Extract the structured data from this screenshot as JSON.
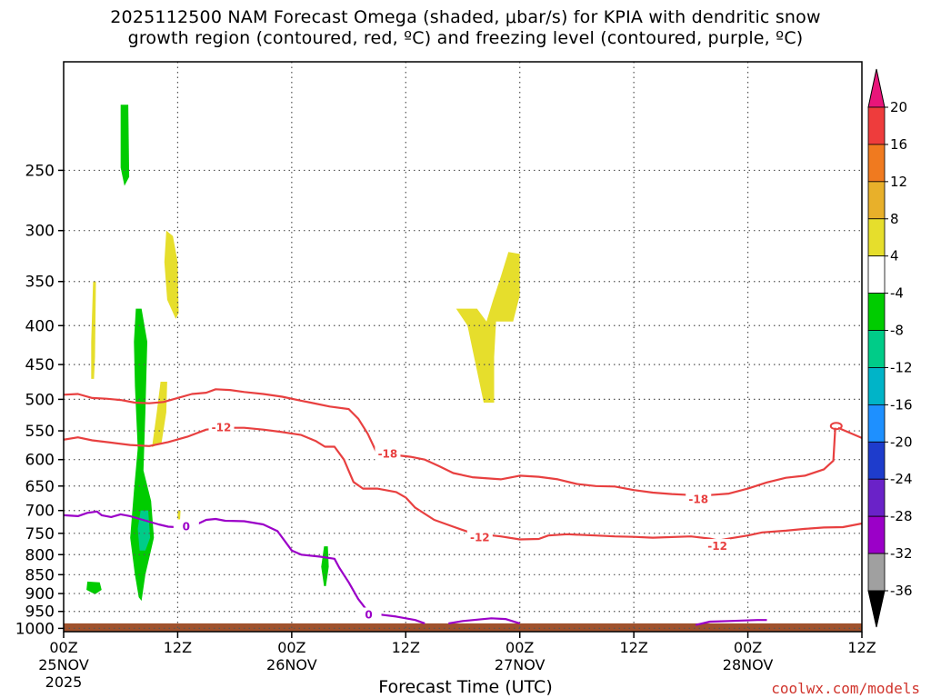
{
  "title_line1": "2025112500 NAM Forecast Omega (shaded, μbar/s) for KPIA with dendritic snow",
  "title_line2": "growth region (contoured, red, ºC) and freezing level (contoured, purple, ºC)",
  "x_axis_title": "Forecast Time (UTC)",
  "credit": "coolwx.com/models",
  "chart_data": {
    "type": "heatmap",
    "y_ticks": [
      250,
      300,
      350,
      400,
      450,
      500,
      550,
      600,
      650,
      700,
      750,
      800,
      850,
      900,
      950,
      1000
    ],
    "ylim": [
      1010,
      180
    ],
    "x_ticks": [
      {
        "h": 0,
        "label": [
          "00Z",
          "25NOV",
          "2025"
        ]
      },
      {
        "h": 12,
        "label": [
          "12Z"
        ]
      },
      {
        "h": 24,
        "label": [
          "00Z",
          "26NOV"
        ]
      },
      {
        "h": 36,
        "label": [
          "12Z"
        ]
      },
      {
        "h": 48,
        "label": [
          "00Z",
          "27NOV"
        ]
      },
      {
        "h": 60,
        "label": [
          "12Z"
        ]
      },
      {
        "h": 72,
        "label": [
          "00Z",
          "28NOV"
        ]
      },
      {
        "h": 84,
        "label": [
          "12Z"
        ]
      }
    ],
    "xlim": [
      0,
      84
    ],
    "grid": true,
    "colorbar": {
      "labels": [
        20,
        16,
        12,
        8,
        4,
        -4,
        -8,
        -12,
        -16,
        -20,
        -24,
        -28,
        -32,
        -36
      ],
      "colors": [
        "#e8157a",
        "#ee3c3c",
        "#f07a1f",
        "#e8b02a",
        "#e6de2c",
        "#ffffff",
        "#00cc00",
        "#00cc88",
        "#00b4c8",
        "#1e90ff",
        "#1e3ccc",
        "#6a22c8",
        "#9b00c8",
        "#a0a0a0",
        "#000000"
      ]
    },
    "contour_labels": [
      {
        "text": "-12",
        "h": 16.6,
        "p": 545,
        "color": "#e84040"
      },
      {
        "text": "-18",
        "h": 34.1,
        "p": 590,
        "color": "#e84040"
      },
      {
        "text": "-12",
        "h": 43.8,
        "p": 760,
        "color": "#e84040"
      },
      {
        "text": "-18",
        "h": 66.8,
        "p": 677,
        "color": "#e84040"
      },
      {
        "text": "-12",
        "h": 68.8,
        "p": 780,
        "color": "#e84040"
      },
      {
        "text": "0",
        "h": 12.9,
        "p": 735,
        "color": "#9b00c8"
      },
      {
        "text": "0",
        "h": 32.1,
        "p": 960,
        "color": "#9b00c8"
      }
    ],
    "series": [
      {
        "kind": "contour",
        "color": "#e84040",
        "points": [
          [
            0,
            493
          ],
          [
            1.5,
            492
          ],
          [
            3,
            498
          ],
          [
            4.5,
            499
          ],
          [
            6,
            501
          ],
          [
            7.5,
            505
          ],
          [
            9,
            506
          ],
          [
            10.5,
            504
          ],
          [
            12,
            498
          ],
          [
            13.5,
            492
          ],
          [
            15,
            490
          ],
          [
            16,
            485
          ],
          [
            17.5,
            486
          ],
          [
            19,
            489
          ],
          [
            21,
            492
          ],
          [
            23,
            496
          ],
          [
            25,
            502
          ],
          [
            26,
            505
          ],
          [
            28,
            511
          ],
          [
            30,
            515
          ],
          [
            31,
            530
          ],
          [
            32,
            555
          ],
          [
            32.5,
            572
          ],
          [
            33,
            590
          ],
          [
            34,
            590
          ],
          [
            36.5,
            595
          ],
          [
            38,
            600
          ],
          [
            39.5,
            612
          ],
          [
            41,
            625
          ],
          [
            43,
            633
          ],
          [
            46,
            637
          ],
          [
            48,
            630
          ],
          [
            50,
            632
          ],
          [
            52,
            637
          ],
          [
            54,
            646
          ],
          [
            56,
            650
          ],
          [
            58,
            651
          ],
          [
            60,
            658
          ],
          [
            62,
            663
          ],
          [
            64,
            666
          ],
          [
            66,
            668
          ],
          [
            68,
            668
          ],
          [
            70,
            665
          ],
          [
            72,
            655
          ],
          [
            74,
            643
          ],
          [
            76,
            634
          ],
          [
            78,
            630
          ],
          [
            80,
            618
          ],
          [
            81,
            602
          ],
          [
            81.2,
            545
          ]
        ]
      },
      {
        "kind": "contour",
        "color": "#e84040",
        "points": [
          [
            0,
            565
          ],
          [
            1.5,
            561
          ],
          [
            3,
            566
          ],
          [
            5,
            570
          ],
          [
            7,
            574
          ],
          [
            9,
            576
          ],
          [
            11,
            569
          ],
          [
            13,
            560
          ],
          [
            15,
            548
          ],
          [
            17,
            545
          ],
          [
            19,
            545
          ],
          [
            21,
            548
          ],
          [
            23,
            552
          ],
          [
            25,
            557
          ],
          [
            26.5,
            567
          ],
          [
            27.5,
            577
          ],
          [
            28.5,
            577
          ],
          [
            29.5,
            600
          ],
          [
            30.5,
            642
          ],
          [
            31.5,
            655
          ],
          [
            33,
            655
          ],
          [
            35,
            662
          ],
          [
            36,
            673
          ],
          [
            37,
            694
          ],
          [
            39,
            720
          ],
          [
            41,
            735
          ],
          [
            43,
            750
          ],
          [
            46,
            757
          ],
          [
            48,
            764
          ],
          [
            50,
            763
          ],
          [
            51,
            755
          ],
          [
            53,
            752
          ],
          [
            56,
            755
          ],
          [
            58,
            757
          ],
          [
            60,
            758
          ],
          [
            62,
            760
          ],
          [
            66,
            757
          ],
          [
            68,
            762
          ],
          [
            69,
            767
          ]
        ]
      },
      {
        "kind": "contour",
        "color": "#e84040",
        "points": [
          [
            67.5,
            772
          ],
          [
            70,
            762
          ],
          [
            72,
            755
          ],
          [
            73.5,
            748
          ],
          [
            76,
            744
          ],
          [
            78,
            740
          ],
          [
            80,
            737
          ],
          [
            82,
            736
          ],
          [
            84,
            728
          ]
        ]
      },
      {
        "kind": "contour",
        "color": "#e84040",
        "points": [
          [
            81.5,
            545
          ],
          [
            84,
            562
          ]
        ]
      },
      {
        "kind": "contour",
        "color": "#9b00c8",
        "points": [
          [
            0,
            710
          ],
          [
            1.5,
            712
          ],
          [
            2.5,
            705
          ],
          [
            3.5,
            702
          ],
          [
            4,
            710
          ],
          [
            5,
            714
          ],
          [
            6,
            708
          ],
          [
            7,
            712
          ],
          [
            8,
            718
          ],
          [
            9,
            724
          ],
          [
            10,
            730
          ],
          [
            11,
            735
          ],
          [
            12.5,
            737
          ],
          [
            14,
            730
          ],
          [
            15,
            720
          ],
          [
            16,
            718
          ],
          [
            17,
            722
          ],
          [
            19,
            723
          ],
          [
            21,
            730
          ],
          [
            22.5,
            745
          ],
          [
            24,
            790
          ],
          [
            25,
            800
          ],
          [
            27,
            805
          ],
          [
            28.5,
            810
          ],
          [
            29,
            832
          ],
          [
            30,
            870
          ],
          [
            31,
            915
          ],
          [
            32,
            950
          ],
          [
            33,
            958
          ],
          [
            35,
            965
          ],
          [
            37,
            975
          ],
          [
            38,
            985
          ]
        ]
      },
      {
        "kind": "contour",
        "color": "#9b00c8",
        "points": [
          [
            40.5,
            985
          ],
          [
            42,
            978
          ],
          [
            45,
            970
          ],
          [
            46.5,
            972
          ],
          [
            48,
            985
          ]
        ]
      },
      {
        "kind": "contour",
        "color": "#9b00c8",
        "points": [
          [
            66.5,
            990
          ],
          [
            68,
            980
          ],
          [
            70,
            978
          ],
          [
            73,
            975
          ],
          [
            74,
            975
          ]
        ]
      }
    ],
    "shaded": [
      {
        "level": -8,
        "color": "#00cc00",
        "points": [
          [
            6.0,
            205
          ],
          [
            6.8,
            205
          ],
          [
            6.9,
            255
          ],
          [
            6.4,
            262
          ],
          [
            6.0,
            248
          ]
        ]
      },
      {
        "level": 4,
        "color": "#e6de2c",
        "points": [
          [
            10.8,
            300
          ],
          [
            11.5,
            305
          ],
          [
            12.0,
            330
          ],
          [
            12.1,
            385
          ],
          [
            11.8,
            392
          ],
          [
            10.9,
            370
          ],
          [
            10.6,
            330
          ]
        ]
      },
      {
        "level": 4,
        "color": "#e6de2c",
        "points": [
          [
            3.1,
            350
          ],
          [
            3.4,
            350
          ],
          [
            3.3,
            440
          ],
          [
            3.2,
            470
          ],
          [
            2.9,
            470
          ],
          [
            2.9,
            420
          ]
        ]
      },
      {
        "level": -8,
        "color": "#00cc00",
        "points": [
          [
            7.6,
            380
          ],
          [
            8.2,
            380
          ],
          [
            8.8,
            420
          ],
          [
            8.6,
            520
          ],
          [
            8.4,
            620
          ],
          [
            9.2,
            680
          ],
          [
            9.5,
            760
          ],
          [
            8.6,
            850
          ],
          [
            8.2,
            920
          ],
          [
            7.9,
            910
          ],
          [
            7.5,
            850
          ],
          [
            7.0,
            760
          ],
          [
            7.4,
            660
          ],
          [
            7.8,
            580
          ],
          [
            7.5,
            480
          ],
          [
            7.4,
            420
          ]
        ]
      },
      {
        "level": 4,
        "color": "#e6de2c",
        "points": [
          [
            10.2,
            474
          ],
          [
            10.9,
            474
          ],
          [
            10.8,
            520
          ],
          [
            10.3,
            570
          ],
          [
            9.3,
            578
          ],
          [
            9.8,
            520
          ]
        ]
      },
      {
        "level": 4,
        "color": "#e6de2c",
        "points": [
          [
            12.0,
            700
          ],
          [
            12.3,
            700
          ],
          [
            12.2,
            740
          ],
          [
            12.0,
            740
          ]
        ]
      },
      {
        "level": -8,
        "color": "#00cc00",
        "points": [
          [
            2.5,
            868
          ],
          [
            3.8,
            870
          ],
          [
            4.0,
            890
          ],
          [
            3.3,
            902
          ],
          [
            2.4,
            890
          ]
        ]
      },
      {
        "level": -8,
        "color": "#00cc00",
        "points": [
          [
            27.4,
            780
          ],
          [
            27.8,
            780
          ],
          [
            27.9,
            830
          ],
          [
            27.6,
            880
          ],
          [
            27.4,
            880
          ],
          [
            27.1,
            830
          ]
        ]
      },
      {
        "level": 4,
        "color": "#e6de2c",
        "points": [
          [
            46.8,
            320
          ],
          [
            48.0,
            322
          ],
          [
            48.0,
            365
          ],
          [
            47.3,
            395
          ],
          [
            45.5,
            395
          ],
          [
            45.3,
            440
          ],
          [
            45.3,
            505
          ],
          [
            44.2,
            505
          ],
          [
            42.5,
            400
          ],
          [
            41.3,
            380
          ],
          [
            43.5,
            380
          ],
          [
            44.5,
            395
          ],
          [
            45.2,
            370
          ],
          [
            46.0,
            345
          ]
        ]
      }
    ],
    "ground": {
      "color": "#a0522d",
      "top_p": 985
    }
  }
}
